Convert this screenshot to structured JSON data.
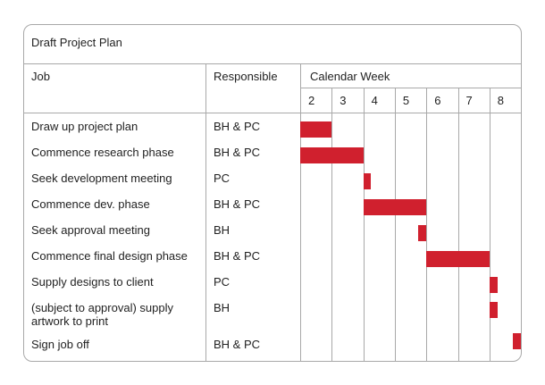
{
  "chart_data": {
    "type": "gantt",
    "title": "Draft Project Plan",
    "columns": {
      "job": "Job",
      "responsible": "Responsible",
      "calendar": "Calendar Week"
    },
    "weeks": [
      "2",
      "3",
      "4",
      "5",
      "6",
      "7",
      "8"
    ],
    "bar_color": "#d0202e",
    "tasks": [
      {
        "job": "Draw up project plan",
        "responsible": "BH & PC",
        "start": 2,
        "end": 3
      },
      {
        "job": "Commence research phase",
        "responsible": "BH & PC",
        "start": 2,
        "end": 4
      },
      {
        "job": "Seek development meeting",
        "responsible": "PC",
        "start": 4,
        "end": 4.25
      },
      {
        "job": "Commence dev. phase",
        "responsible": "BH & PC",
        "start": 4,
        "end": 6
      },
      {
        "job": "Seek approval meeting",
        "responsible": "BH",
        "start": 5.75,
        "end": 6
      },
      {
        "job": "Commence final design phase",
        "responsible": "BH & PC",
        "start": 6,
        "end": 8
      },
      {
        "job": "Supply designs to client",
        "responsible": "PC",
        "start": 8,
        "end": 8.25
      },
      {
        "job": "(subject to approval) supply artwork to print",
        "job_lines": [
          "(subject to approval) supply",
          "artwork to print"
        ],
        "responsible": "BH",
        "start": 8,
        "end": 8.25
      },
      {
        "job": "Sign job off",
        "responsible": "BH & PC",
        "start": 8.75,
        "end": 9
      }
    ]
  }
}
